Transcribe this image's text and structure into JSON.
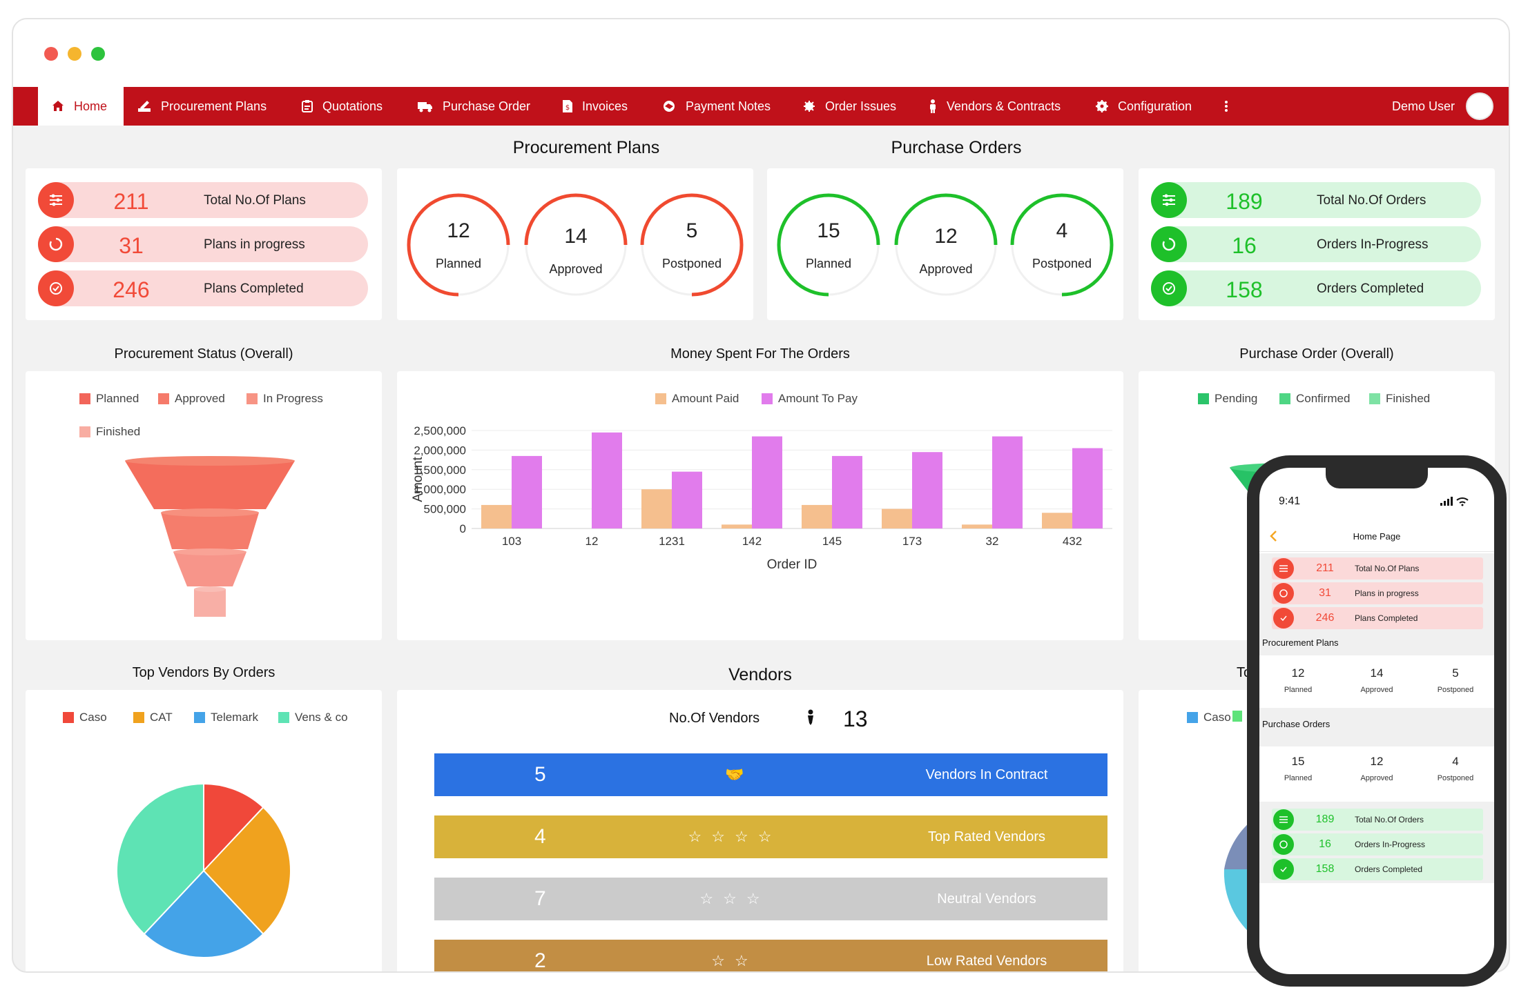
{
  "nav": {
    "items": [
      {
        "label": "Home",
        "icon": "home-icon"
      },
      {
        "label": "Procurement Plans",
        "icon": "signature-icon"
      },
      {
        "label": "Quotations",
        "icon": "clipboard-icon"
      },
      {
        "label": "Purchase Order",
        "icon": "truck-icon"
      },
      {
        "label": "Invoices",
        "icon": "invoice-icon"
      },
      {
        "label": "Payment Notes",
        "icon": "handshake-icon"
      },
      {
        "label": "Order Issues",
        "icon": "bug-icon"
      },
      {
        "label": "Vendors & Contracts",
        "icon": "person-icon"
      },
      {
        "label": "Configuration",
        "icon": "gear-icon"
      }
    ],
    "user": "Demo User"
  },
  "titles": {
    "procurement_plans": "Procurement Plans",
    "purchase_orders": "Purchase Orders",
    "procurement_status": "Procurement Status (Overall)",
    "money_spent": "Money Spent For The Orders",
    "purchase_order_overall": "Purchase Order (Overall)",
    "top_vendors": "Top Vendors By Orders",
    "vendors": "Vendors"
  },
  "plans_summary": [
    {
      "value": "211",
      "label": "Total No.Of Plans"
    },
    {
      "value": "31",
      "label": "Plans in progress"
    },
    {
      "value": "246",
      "label": "Plans Completed"
    }
  ],
  "plans_status": [
    {
      "value": "12",
      "label": "Planned"
    },
    {
      "value": "14",
      "label": "Approved"
    },
    {
      "value": "5",
      "label": "Postponed"
    }
  ],
  "orders_status": [
    {
      "value": "15",
      "label": "Planned"
    },
    {
      "value": "12",
      "label": "Approved"
    },
    {
      "value": "4",
      "label": "Postponed"
    }
  ],
  "orders_summary": [
    {
      "value": "189",
      "label": "Total No.Of Orders"
    },
    {
      "value": "16",
      "label": "Orders In-Progress"
    },
    {
      "value": "158",
      "label": "Orders Completed"
    }
  ],
  "procurement_funnel": {
    "legend": [
      {
        "label": "Planned",
        "color": "#f2655a"
      },
      {
        "label": "Approved",
        "color": "#f57a6a"
      },
      {
        "label": "In Progress",
        "color": "#f79484"
      },
      {
        "label": "Finished",
        "color": "#f8ada2"
      }
    ]
  },
  "order_funnel": {
    "legend": [
      {
        "label": "Pending",
        "color": "#2bc46a"
      },
      {
        "label": "Confirmed",
        "color": "#4fd684"
      },
      {
        "label": "Finished",
        "color": "#7ee2a4"
      }
    ]
  },
  "chart_data": {
    "type": "bar",
    "categories": [
      "103",
      "12",
      "1231",
      "142",
      "145",
      "173",
      "32",
      "432"
    ],
    "series": [
      {
        "name": "Amount Paid",
        "color": "#f5bf8e",
        "values": [
          600000,
          0,
          1000000,
          100000,
          600000,
          500000,
          100000,
          400000
        ]
      },
      {
        "name": "Amount To Pay",
        "color": "#e17cec",
        "values": [
          1850000,
          2450000,
          1450000,
          2350000,
          1850000,
          1950000,
          2350000,
          2050000
        ]
      }
    ],
    "yticks": [
      "0",
      "500,000",
      "1,000,000",
      "1,500,000",
      "2,000,000",
      "2,500,000"
    ],
    "ylim": [
      0,
      2500000
    ],
    "xlabel": "Order ID",
    "ylabel": "Amount"
  },
  "top_vendors": {
    "legend": [
      {
        "label": "Caso",
        "color": "#f0483a"
      },
      {
        "label": "CAT",
        "color": "#f0a21e"
      },
      {
        "label": "Telemark",
        "color": "#44a3e8"
      },
      {
        "label": "Vens & co",
        "color": "#5ee3b4"
      }
    ],
    "slices": [
      {
        "name": "Caso",
        "value": 12,
        "color": "#f0483a"
      },
      {
        "name": "CAT",
        "value": 26,
        "color": "#f0a21e"
      },
      {
        "name": "Telemark",
        "value": 24,
        "color": "#44a3e8"
      },
      {
        "name": "Vens & co",
        "value": 38,
        "color": "#5ee3b4"
      }
    ],
    "right_legend_first": "Caso",
    "right_title_partial": "To"
  },
  "vendors": {
    "count_label": "No.Of Vendors",
    "count": "13",
    "rows": [
      {
        "value": "5",
        "label": "Vendors In Contract",
        "color": "#2b72e2",
        "icons": "🤝"
      },
      {
        "value": "4",
        "label": "Top Rated Vendors",
        "color": "#d8b23a",
        "icons": "☆☆☆☆"
      },
      {
        "value": "7",
        "label": "Neutral Vendors",
        "color": "#cbcbcb",
        "icons": "☆☆☆"
      },
      {
        "value": "2",
        "label": "Low Rated Vendors",
        "color": "#c28e44",
        "icons": "☆☆"
      }
    ]
  },
  "phone": {
    "time": "9:41",
    "title": "Home Page",
    "plans": [
      {
        "value": "211",
        "label": "Total No.Of Plans"
      },
      {
        "value": "31",
        "label": "Plans in progress"
      },
      {
        "value": "246",
        "label": "Plans Completed"
      }
    ],
    "plans_title": "Procurement Plans",
    "plans_stats": [
      {
        "value": "12",
        "label": "Planned"
      },
      {
        "value": "14",
        "label": "Approved"
      },
      {
        "value": "5",
        "label": "Postponed"
      }
    ],
    "orders_title": "Purchase Orders",
    "orders_stats": [
      {
        "value": "15",
        "label": "Planned"
      },
      {
        "value": "12",
        "label": "Approved"
      },
      {
        "value": "4",
        "label": "Postponed"
      }
    ],
    "orders": [
      {
        "value": "189",
        "label": "Total No.Of Orders"
      },
      {
        "value": "16",
        "label": "Orders In-Progress"
      },
      {
        "value": "158",
        "label": "Orders Completed"
      }
    ]
  }
}
